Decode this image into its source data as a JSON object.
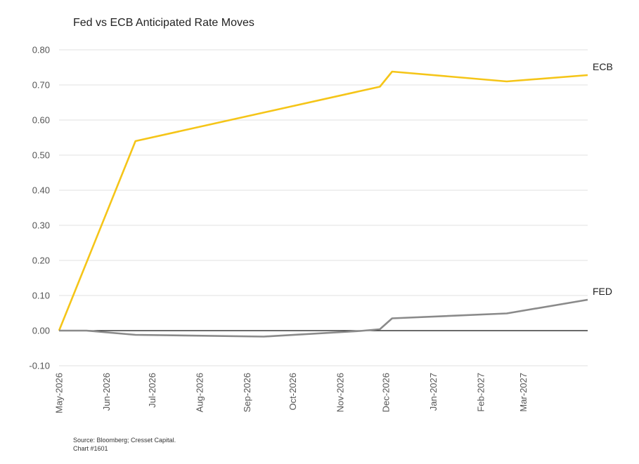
{
  "chart_data": {
    "type": "line",
    "title": "Fed vs ECB Anticipated Rate Moves",
    "xlabel": "",
    "ylabel": "",
    "ylim": [
      -0.1,
      0.8
    ],
    "yticks": [
      "0.80",
      "0.70",
      "0.60",
      "0.50",
      "0.40",
      "0.30",
      "0.20",
      "0.10",
      "0.00",
      "-0.10"
    ],
    "xticks": [
      "May-2026",
      "Jun-2026",
      "Jul-2026",
      "Aug-2026",
      "Sep-2026",
      "Oct-2026",
      "Nov-2026",
      "Dec-2026",
      "Jan-2027",
      "Feb-2027",
      "Mar-2027"
    ],
    "grid": true,
    "series": [
      {
        "name": "ECB",
        "color": "#f5c518",
        "points": [
          {
            "x": "2026-05-01",
            "y": 0.0
          },
          {
            "x": "2026-06-20",
            "y": 0.54
          },
          {
            "x": "2026-11-27",
            "y": 0.695
          },
          {
            "x": "2026-12-05",
            "y": 0.738
          },
          {
            "x": "2027-02-18",
            "y": 0.71
          },
          {
            "x": "2027-04-12",
            "y": 0.728
          }
        ]
      },
      {
        "name": "FED",
        "color": "#8a8a8a",
        "points": [
          {
            "x": "2026-05-01",
            "y": 0.0
          },
          {
            "x": "2026-05-19",
            "y": 0.0
          },
          {
            "x": "2026-06-20",
            "y": -0.012
          },
          {
            "x": "2026-09-12",
            "y": -0.017
          },
          {
            "x": "2026-11-14",
            "y": -0.001
          },
          {
            "x": "2026-11-27",
            "y": 0.004
          },
          {
            "x": "2026-12-05",
            "y": 0.035
          },
          {
            "x": "2027-02-18",
            "y": 0.049
          },
          {
            "x": "2027-04-12",
            "y": 0.088
          }
        ]
      }
    ],
    "source": "Source: Bloomberg; Cresset Capital.",
    "chart_number": "Chart #1601"
  }
}
